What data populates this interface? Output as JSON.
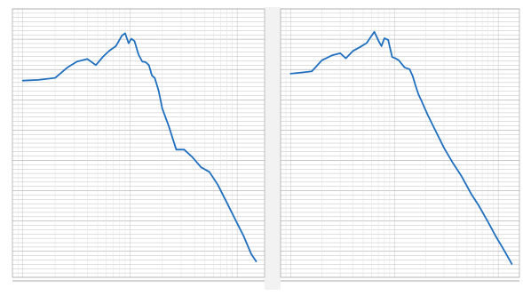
{
  "chart_data": [
    {
      "type": "line",
      "title": "",
      "xlabel": "",
      "ylabel": "",
      "xscale": "log",
      "yscale": "log",
      "grid": true,
      "legend": "none",
      "series": [
        {
          "color": "#1f6fbf",
          "x": [
            1,
            1.4,
            2,
            2.6,
            3.2,
            4,
            4.8,
            5.6,
            6.4,
            7.4,
            8.4,
            9,
            9.7,
            10.3,
            11,
            12,
            13,
            14,
            15,
            16,
            17,
            18.5,
            20,
            23,
            27,
            32,
            38,
            46,
            55,
            66,
            80,
            95,
            115,
            135,
            150
          ],
          "y": [
            0.18,
            0.185,
            0.2,
            0.3,
            0.38,
            0.42,
            0.33,
            0.46,
            0.58,
            0.7,
            1.05,
            1.15,
            0.78,
            0.93,
            0.85,
            0.5,
            0.38,
            0.37,
            0.33,
            0.22,
            0.2,
            0.12,
            0.06,
            0.03,
            0.012,
            0.012,
            0.009,
            0.006,
            0.005,
            0.003,
            0.0015,
            0.0008,
            0.0004,
            0.0002,
            0.00015
          ]
        }
      ]
    },
    {
      "type": "line",
      "title": "",
      "xlabel": "",
      "ylabel": "",
      "xscale": "log",
      "yscale": "log",
      "grid": true,
      "legend": "none",
      "series": [
        {
          "color": "#1f6fbf",
          "x": [
            1,
            1.3,
            1.6,
            2,
            2.5,
            3,
            3.4,
            4,
            4.6,
            5.4,
            6.4,
            7,
            7.5,
            8,
            8.7,
            9.5,
            10.2,
            11,
            12.5,
            14,
            15,
            16,
            17,
            18.5,
            21,
            25,
            30,
            36,
            44,
            55,
            65,
            80,
            95,
            115,
            135
          ],
          "y": [
            0.2,
            0.21,
            0.22,
            0.35,
            0.43,
            0.47,
            0.38,
            0.52,
            0.6,
            0.72,
            1.15,
            0.8,
            0.63,
            0.88,
            0.82,
            0.4,
            0.38,
            0.35,
            0.26,
            0.24,
            0.18,
            0.12,
            0.085,
            0.06,
            0.035,
            0.018,
            0.009,
            0.005,
            0.0028,
            0.0013,
            0.0008,
            0.0004,
            0.00022,
            0.00012,
            7e-05
          ]
        }
      ]
    }
  ]
}
